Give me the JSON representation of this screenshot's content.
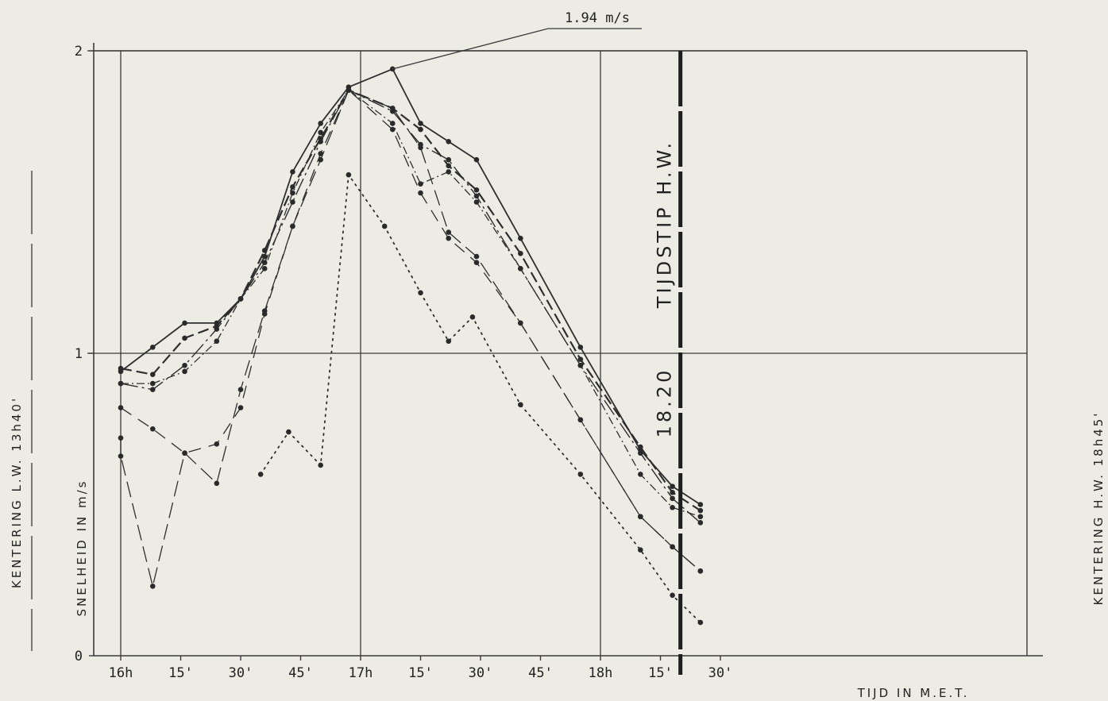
{
  "chart_data": {
    "type": "line",
    "xlabel": "TIJD IN M.E.T.",
    "ylabel": "SNELHEID IN m/s",
    "x_unit": "minutes after 16h",
    "xlim": [
      0,
      150
    ],
    "ylim": [
      0,
      2
    ],
    "yticks": [
      {
        "v": 0,
        "t": "0"
      },
      {
        "v": 1,
        "t": "1"
      },
      {
        "v": 2,
        "t": "2"
      }
    ],
    "xticks": [
      {
        "v": 0,
        "t": "16h"
      },
      {
        "v": 15,
        "t": "15'"
      },
      {
        "v": 30,
        "t": "30'"
      },
      {
        "v": 45,
        "t": "45'"
      },
      {
        "v": 60,
        "t": "17h"
      },
      {
        "v": 75,
        "t": "15'"
      },
      {
        "v": 90,
        "t": "30'"
      },
      {
        "v": 105,
        "t": "45'"
      },
      {
        "v": 120,
        "t": "18h"
      },
      {
        "v": 135,
        "t": "15'"
      },
      {
        "v": 150,
        "t": "30'"
      }
    ],
    "grid_x": [
      0,
      60,
      120
    ],
    "grid_y": [
      1,
      2
    ],
    "peak_annotation": {
      "text": "1.94 m/s",
      "x": 68,
      "y": 1.94
    },
    "hw_marker": {
      "x": 140,
      "label": "TIJDSTIP H.W.",
      "time": "18.20"
    },
    "left_side_label": "KENTERING L.W. 13h40'",
    "right_side_label": "KENTERING H.W. 18h45'",
    "series": [
      {
        "style": "solid",
        "points": [
          [
            0,
            0.94
          ],
          [
            8,
            1.02
          ],
          [
            16,
            1.1
          ],
          [
            24,
            1.1
          ],
          [
            30,
            1.18
          ],
          [
            36,
            1.32
          ],
          [
            43,
            1.6
          ],
          [
            50,
            1.76
          ],
          [
            57,
            1.88
          ],
          [
            68,
            1.94
          ],
          [
            75,
            1.76
          ],
          [
            82,
            1.7
          ],
          [
            89,
            1.64
          ],
          [
            100,
            1.38
          ],
          [
            115,
            1.02
          ],
          [
            130,
            0.68
          ],
          [
            138,
            0.56
          ],
          [
            145,
            0.5
          ]
        ]
      },
      {
        "style": "dash",
        "points": [
          [
            0,
            0.95
          ],
          [
            8,
            0.93
          ],
          [
            16,
            1.05
          ],
          [
            24,
            1.09
          ],
          [
            30,
            1.18
          ],
          [
            36,
            1.34
          ],
          [
            43,
            1.55
          ],
          [
            50,
            1.71
          ],
          [
            57,
            1.87
          ],
          [
            68,
            1.81
          ],
          [
            75,
            1.74
          ],
          [
            82,
            1.62
          ],
          [
            89,
            1.54
          ],
          [
            100,
            1.33
          ],
          [
            115,
            0.98
          ],
          [
            130,
            0.69
          ],
          [
            138,
            0.54
          ],
          [
            145,
            0.48
          ]
        ]
      },
      {
        "style": "longdash",
        "points": [
          [
            0,
            0.9
          ],
          [
            8,
            0.88
          ],
          [
            16,
            0.96
          ],
          [
            24,
            1.08
          ],
          [
            30,
            1.18
          ],
          [
            36,
            1.3
          ],
          [
            43,
            1.5
          ],
          [
            50,
            1.7
          ],
          [
            57,
            1.87
          ],
          [
            68,
            1.8
          ],
          [
            75,
            1.69
          ],
          [
            82,
            1.64
          ],
          [
            89,
            1.52
          ],
          [
            100,
            1.28
          ],
          [
            115,
            0.96
          ],
          [
            130,
            0.67
          ],
          [
            138,
            0.52
          ],
          [
            145,
            0.44
          ]
        ]
      },
      {
        "style": "dashdot",
        "points": [
          [
            0,
            0.9
          ],
          [
            8,
            0.9
          ],
          [
            16,
            0.94
          ],
          [
            24,
            1.04
          ],
          [
            30,
            1.18
          ],
          [
            36,
            1.28
          ],
          [
            43,
            1.53
          ],
          [
            50,
            1.73
          ],
          [
            57,
            1.87
          ],
          [
            68,
            1.76
          ],
          [
            75,
            1.56
          ],
          [
            82,
            1.6
          ],
          [
            89,
            1.5
          ],
          [
            100,
            1.28
          ],
          [
            115,
            0.96
          ],
          [
            130,
            0.6
          ],
          [
            138,
            0.49
          ],
          [
            145,
            0.46
          ]
        ]
      },
      {
        "style": "longdash2",
        "points": [
          [
            0,
            0.82
          ],
          [
            8,
            0.75
          ],
          [
            16,
            0.67
          ],
          [
            24,
            0.7
          ],
          [
            30,
            0.82
          ],
          [
            36,
            1.13
          ],
          [
            43,
            1.42
          ],
          [
            50,
            1.66
          ],
          [
            57,
            1.87
          ],
          [
            68,
            1.74
          ],
          [
            75,
            1.53
          ],
          [
            82,
            1.38
          ],
          [
            89,
            1.3
          ],
          [
            100,
            1.1
          ],
          [
            115,
            0.78
          ],
          [
            130,
            0.46
          ],
          [
            138,
            0.36
          ],
          [
            145,
            0.28
          ]
        ]
      },
      {
        "style": "mixed",
        "points": [
          [
            0,
            0.72
          ],
          [
            0,
            0.66
          ],
          [
            8,
            0.23
          ],
          [
            16,
            0.67
          ],
          [
            24,
            0.57
          ],
          [
            30,
            0.88
          ],
          [
            36,
            1.14
          ],
          [
            43,
            1.42
          ],
          [
            50,
            1.64
          ],
          [
            57,
            1.87
          ],
          [
            68,
            1.81
          ],
          [
            75,
            1.68
          ],
          [
            82,
            1.4
          ],
          [
            89,
            1.32
          ],
          [
            100,
            1.1
          ],
          [
            115,
            0.78
          ],
          [
            130,
            0.46
          ],
          [
            138,
            0.36
          ],
          [
            145,
            0.28
          ]
        ]
      },
      {
        "style": "dotted",
        "points": [
          [
            35,
            0.6
          ],
          [
            42,
            0.74
          ],
          [
            50,
            0.63
          ],
          [
            57,
            1.59
          ],
          [
            66,
            1.42
          ],
          [
            75,
            1.2
          ],
          [
            82,
            1.04
          ],
          [
            88,
            1.12
          ],
          [
            100,
            0.83
          ],
          [
            115,
            0.6
          ],
          [
            130,
            0.35
          ],
          [
            138,
            0.2
          ],
          [
            145,
            0.11
          ]
        ]
      }
    ]
  }
}
